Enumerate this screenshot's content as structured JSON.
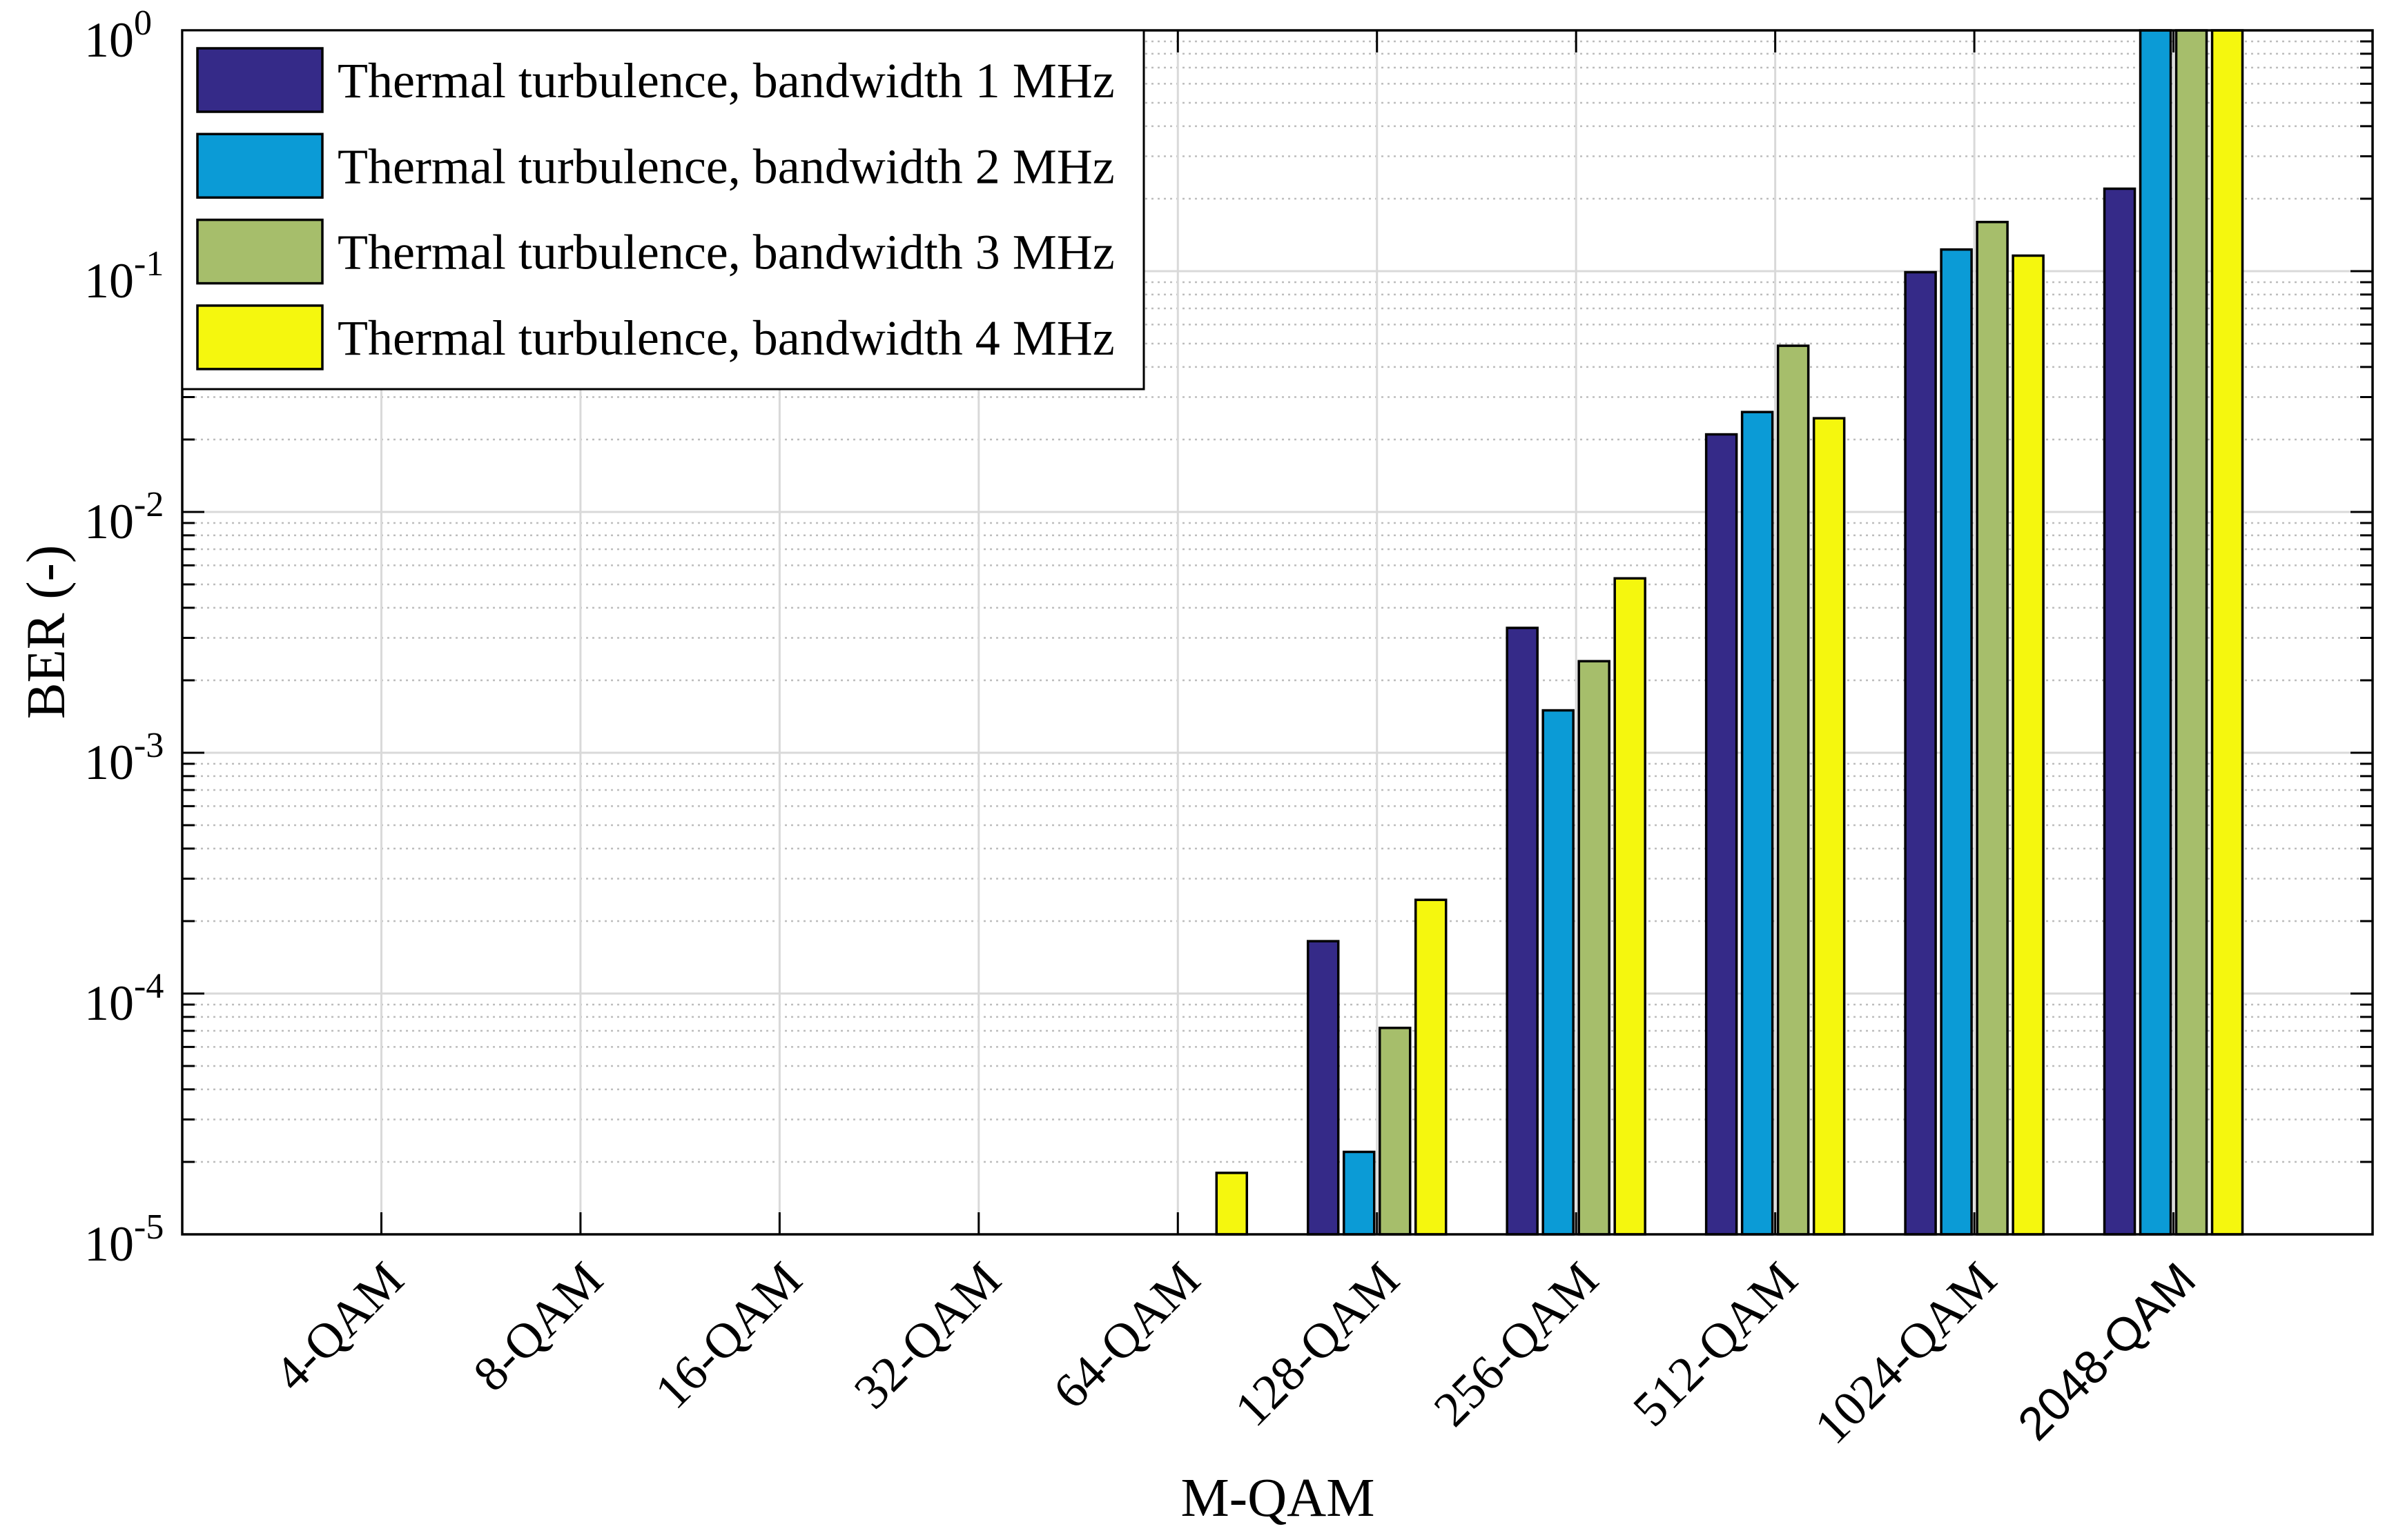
{
  "chart_data": {
    "type": "bar",
    "xlabel": "M-QAM",
    "ylabel": "BER (-)",
    "y_log_scale": true,
    "ylim": [
      1e-05,
      1
    ],
    "xlim": [
      0,
      11
    ],
    "grid": true,
    "minor_grid": true,
    "legend_location": "top-left",
    "categories": [
      "4-QAM",
      "8-QAM",
      "16-QAM",
      "32-QAM",
      "64-QAM",
      "128-QAM",
      "256-QAM",
      "512-QAM",
      "1024-QAM",
      "2048-QAM"
    ],
    "ytick_values": [
      1,
      0.1,
      0.01,
      0.001,
      0.0001,
      1e-05
    ],
    "ytick_labels": [
      {
        "base": "10",
        "exp": "0"
      },
      {
        "base": "10",
        "exp": "-1"
      },
      {
        "base": "10",
        "exp": "-2"
      },
      {
        "base": "10",
        "exp": "-3"
      },
      {
        "base": "10",
        "exp": "-4"
      },
      {
        "base": "10",
        "exp": "-5"
      }
    ],
    "series": [
      {
        "name": "Thermal turbulence, bandwidth 1 MHz",
        "color": "#352A88",
        "values": [
          null,
          null,
          null,
          null,
          null,
          0.000165,
          0.0033,
          0.021,
          0.099,
          0.22
        ]
      },
      {
        "name": "Thermal turbulence, bandwidth 2 MHz",
        "color": "#0B9BD6",
        "values": [
          null,
          null,
          null,
          null,
          null,
          2.2e-05,
          0.0015,
          0.026,
          0.123,
          1
        ]
      },
      {
        "name": "Thermal turbulence, bandwidth 3 MHz",
        "color": "#A6BE6B",
        "values": [
          null,
          null,
          null,
          null,
          null,
          7.2e-05,
          0.0024,
          0.049,
          0.16,
          1
        ]
      },
      {
        "name": "Thermal turbulence, bandwidth 4 MHz",
        "color": "#F5F70E",
        "values": [
          null,
          null,
          null,
          null,
          1.8e-05,
          0.000245,
          0.0053,
          0.0245,
          0.116,
          1
        ]
      }
    ]
  }
}
